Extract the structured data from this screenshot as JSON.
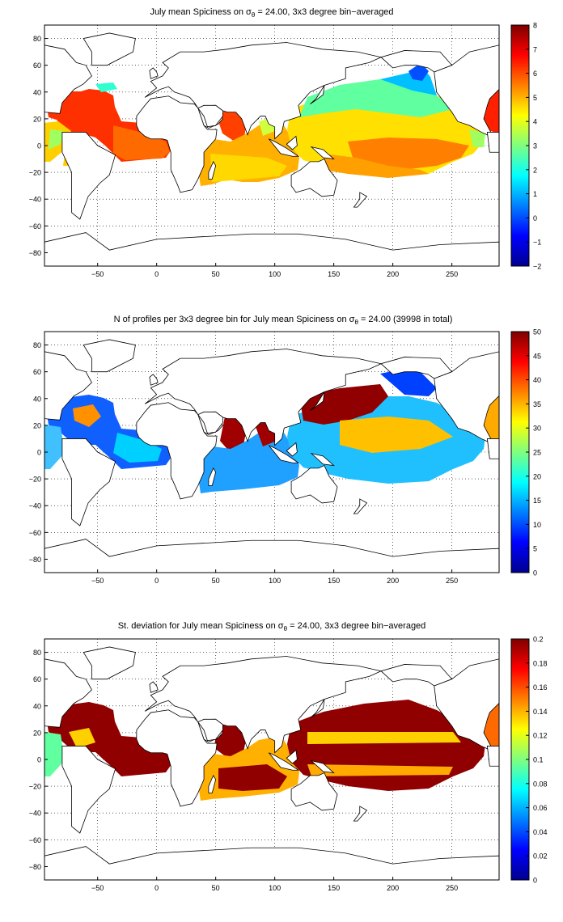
{
  "panels": [
    {
      "title_prefix": "July mean Spiciness on σ",
      "title_sub": "θ",
      "title_suffix": " = 24.00, 3x3 degree bin−averaged",
      "colorbar_ticks": [
        "8",
        "7",
        "6",
        "5",
        "4",
        "3",
        "2",
        "1",
        "0",
        "−1",
        "−2"
      ],
      "colorbar_range": [
        -2,
        8
      ]
    },
    {
      "title_prefix": "N of profiles per 3x3 degree bin for July mean Spiciness on σ",
      "title_sub": "θ",
      "title_suffix": " = 24.00 (39998 in total)",
      "colorbar_ticks": [
        "50",
        "45",
        "40",
        "35",
        "30",
        "25",
        "20",
        "15",
        "10",
        "5",
        "0"
      ],
      "colorbar_range": [
        0,
        50
      ]
    },
    {
      "title_prefix": "St. deviation for July mean Spiciness on σ",
      "title_sub": "θ",
      "title_suffix": " = 24.00, 3x3 degree bin−averaged",
      "colorbar_ticks": [
        "0.2",
        "0.18",
        "0.16",
        "0.14",
        "0.12",
        "0.1",
        "0.08",
        "0.06",
        "0.04",
        "0.02",
        "0"
      ],
      "colorbar_range": [
        0,
        0.2
      ]
    }
  ],
  "x_ticks": [
    "−50",
    "0",
    "50",
    "100",
    "150",
    "200",
    "250"
  ],
  "y_ticks": [
    "80",
    "60",
    "40",
    "20",
    "0",
    "−20",
    "−40",
    "−60",
    "−80"
  ],
  "map": {
    "lon_range": [
      -95,
      290
    ],
    "lat_range": [
      -90,
      90
    ],
    "grid": "dotted",
    "colormap": "jet"
  }
}
